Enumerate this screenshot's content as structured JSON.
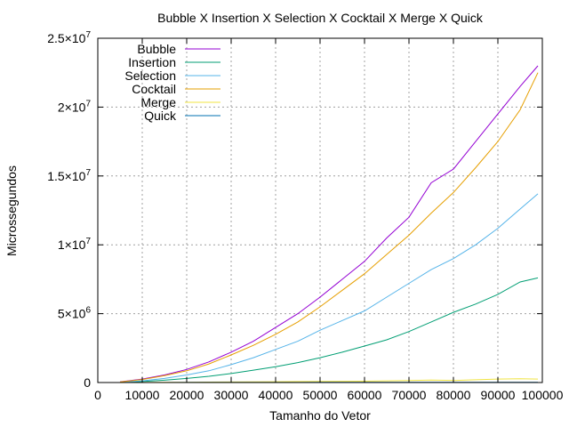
{
  "chart_data": {
    "type": "line",
    "title": "Bubble X Insertion X Selection X Cocktail X Merge X Quick",
    "xlabel": "Tamanho do Vetor",
    "ylabel": "Microssegundos",
    "xlim": [
      0,
      100000
    ],
    "ylim": [
      0,
      25000000
    ],
    "grid": true,
    "legend_position": "top-left",
    "x_ticks": [
      0,
      10000,
      20000,
      30000,
      40000,
      50000,
      60000,
      70000,
      80000,
      90000,
      100000
    ],
    "x_tick_labels": [
      "0",
      "10000",
      "20000",
      "30000",
      "40000",
      "50000",
      "60000",
      "70000",
      "80000",
      "90000",
      "100000"
    ],
    "y_ticks": [
      0,
      5000000,
      10000000,
      15000000,
      20000000,
      25000000
    ],
    "y_tick_labels": [
      {
        "mant": "0",
        "exp": ""
      },
      {
        "mant": "5×10",
        "exp": "6"
      },
      {
        "mant": "1×10",
        "exp": "7"
      },
      {
        "mant": "1.5×10",
        "exp": "7"
      },
      {
        "mant": "2×10",
        "exp": "7"
      },
      {
        "mant": "2.5×10",
        "exp": "7"
      }
    ],
    "x": [
      5000,
      10000,
      15000,
      20000,
      25000,
      30000,
      35000,
      40000,
      45000,
      50000,
      55000,
      60000,
      65000,
      70000,
      75000,
      80000,
      85000,
      90000,
      95000,
      99000
    ],
    "series": [
      {
        "name": "Bubble",
        "color": "#9400d3",
        "values": [
          50000,
          250000,
          550000,
          950000,
          1500000,
          2200000,
          3000000,
          4000000,
          5000000,
          6200000,
          7500000,
          8800000,
          10500000,
          12000000,
          14500000,
          15500000,
          17500000,
          19500000,
          21500000,
          23000000
        ]
      },
      {
        "name": "Insertion",
        "color": "#009e73",
        "values": [
          10000,
          70000,
          170000,
          300000,
          450000,
          650000,
          900000,
          1150000,
          1450000,
          1800000,
          2200000,
          2650000,
          3100000,
          3700000,
          4400000,
          5100000,
          5700000,
          6400000,
          7300000,
          7600000
        ]
      },
      {
        "name": "Selection",
        "color": "#56b4e9",
        "values": [
          20000,
          120000,
          300000,
          550000,
          850000,
          1300000,
          1800000,
          2400000,
          3000000,
          3800000,
          4500000,
          5200000,
          6200000,
          7200000,
          8200000,
          9000000,
          10000000,
          11200000,
          12600000,
          13700000
        ]
      },
      {
        "name": "Cocktail",
        "color": "#e69f00",
        "values": [
          40000,
          220000,
          500000,
          850000,
          1350000,
          2000000,
          2700000,
          3500000,
          4400000,
          5500000,
          6700000,
          7900000,
          9300000,
          10700000,
          12300000,
          13800000,
          15600000,
          17500000,
          19800000,
          22500000
        ]
      },
      {
        "name": "Merge",
        "color": "#f0e442",
        "values": [
          2000,
          8000,
          15000,
          20000,
          30000,
          40000,
          50000,
          60000,
          70000,
          80000,
          90000,
          100000,
          120000,
          150000,
          180000,
          150000,
          200000,
          250000,
          280000,
          250000
        ]
      },
      {
        "name": "Quick",
        "color": "#0072b2",
        "values": [
          1000,
          2000,
          3000,
          4000,
          5000,
          6000,
          7000,
          8000,
          9000,
          10000,
          11000,
          12000,
          13000,
          14000,
          15000,
          16000,
          17000,
          18000,
          19000,
          20000
        ]
      }
    ]
  }
}
